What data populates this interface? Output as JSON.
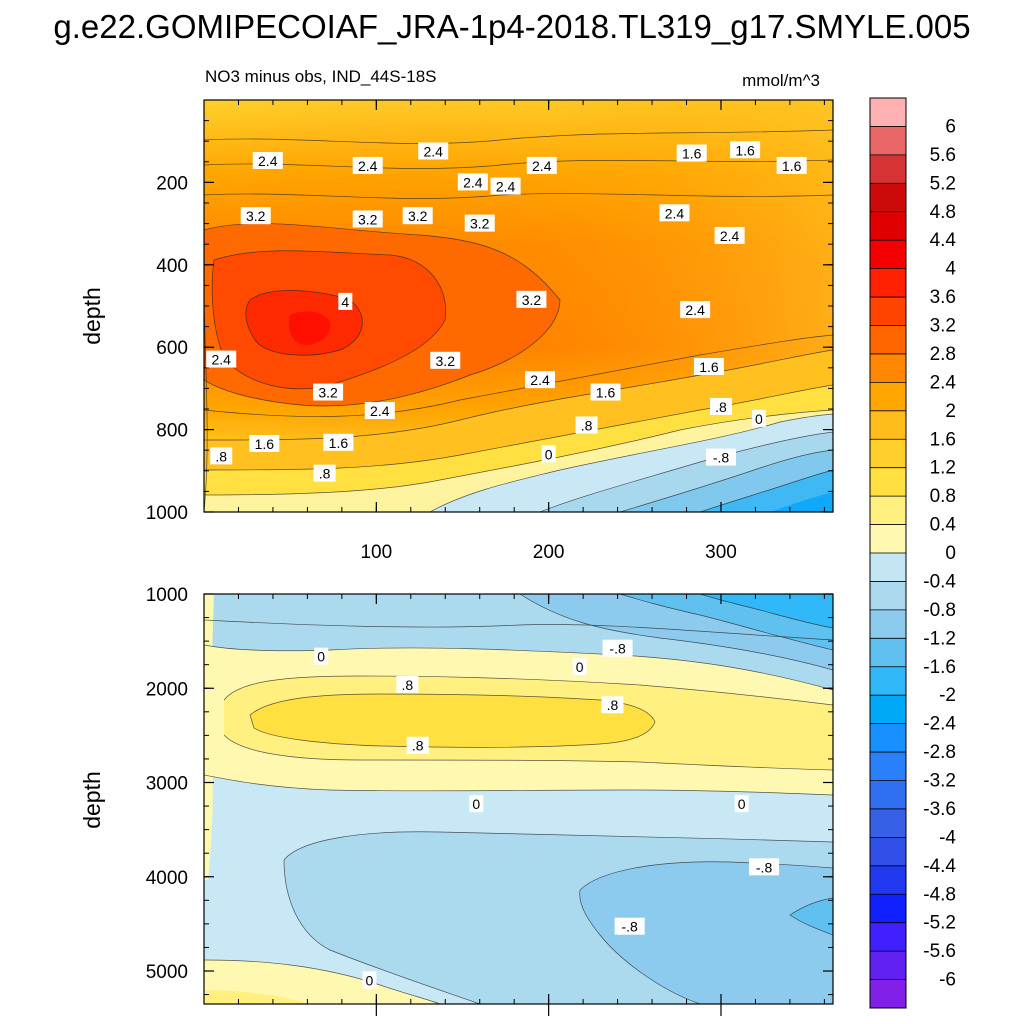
{
  "title": "g.e22.GOMIPECOIAF_JRA-1p4-2018.TL319_g17.SMYLE.005",
  "chart_data": {
    "type": "contour",
    "subtitle_left": "NO3 minus obs, IND_44S-18S",
    "subtitle_right": "mmol/m^3",
    "ylabel": "depth",
    "xlabel": "",
    "panels": [
      {
        "name": "upper",
        "xlim": [
          0,
          365
        ],
        "ylim": [
          0,
          1000
        ],
        "x_ticks": [
          "100",
          "200",
          "300"
        ],
        "x_tick_values": [
          100,
          200,
          300
        ],
        "y_ticks": [
          "200",
          "400",
          "600",
          "800",
          "1000"
        ],
        "y_tick_values": [
          200,
          400,
          600,
          800,
          1000
        ],
        "contour_labels": [
          {
            "text": "2.4",
            "x": 37,
            "y": 148
          },
          {
            "text": "2.4",
            "x": 95,
            "y": 160
          },
          {
            "text": "2.4",
            "x": 133,
            "y": 125
          },
          {
            "text": "2.4",
            "x": 196,
            "y": 160
          },
          {
            "text": "2.4",
            "x": 156,
            "y": 200
          },
          {
            "text": "2.4",
            "x": 175,
            "y": 210
          },
          {
            "text": "1.6",
            "x": 283,
            "y": 130
          },
          {
            "text": "1.6",
            "x": 314,
            "y": 122
          },
          {
            "text": "1.6",
            "x": 341,
            "y": 160
          },
          {
            "text": "3.2",
            "x": 30,
            "y": 282
          },
          {
            "text": "3.2",
            "x": 95,
            "y": 290
          },
          {
            "text": "3.2",
            "x": 124,
            "y": 282
          },
          {
            "text": "3.2",
            "x": 160,
            "y": 300
          },
          {
            "text": "2.4",
            "x": 273,
            "y": 275
          },
          {
            "text": "2.4",
            "x": 305,
            "y": 330
          },
          {
            "text": "4",
            "x": 82,
            "y": 490
          },
          {
            "text": "3.2",
            "x": 190,
            "y": 485
          },
          {
            "text": "2.4",
            "x": 285,
            "y": 510
          },
          {
            "text": "2.4",
            "x": 10,
            "y": 630
          },
          {
            "text": "3.2",
            "x": 140,
            "y": 633
          },
          {
            "text": "3.2",
            "x": 72,
            "y": 710
          },
          {
            "text": "2.4",
            "x": 195,
            "y": 680
          },
          {
            "text": "1.6",
            "x": 293,
            "y": 648
          },
          {
            "text": "1.6",
            "x": 233,
            "y": 710
          },
          {
            "text": "2.4",
            "x": 102,
            "y": 755
          },
          {
            "text": ".8",
            "x": 300,
            "y": 745
          },
          {
            "text": "0",
            "x": 322,
            "y": 774
          },
          {
            "text": ".8",
            "x": 222,
            "y": 790
          },
          {
            "text": "1.6",
            "x": 35,
            "y": 835
          },
          {
            "text": "1.6",
            "x": 78,
            "y": 832
          },
          {
            "text": ".8",
            "x": 10,
            "y": 865
          },
          {
            "text": "0",
            "x": 200,
            "y": 860
          },
          {
            "text": "-.8",
            "x": 300,
            "y": 868
          },
          {
            "text": ".8",
            "x": 70,
            "y": 907
          }
        ]
      },
      {
        "name": "lower",
        "xlim": [
          0,
          365
        ],
        "ylim": [
          1000,
          5350
        ],
        "y_ticks": [
          "1000",
          "2000",
          "3000",
          "4000",
          "5000"
        ],
        "y_tick_values": [
          1000,
          2000,
          3000,
          4000,
          5000
        ],
        "contour_labels": [
          {
            "text": "0",
            "x": 68,
            "y": 1665
          },
          {
            "text": "-.8",
            "x": 240,
            "y": 1580
          },
          {
            "text": "0",
            "x": 218,
            "y": 1775
          },
          {
            "text": ".8",
            "x": 118,
            "y": 1965
          },
          {
            "text": ".8",
            "x": 237,
            "y": 2180
          },
          {
            "text": ".8",
            "x": 124,
            "y": 2610
          },
          {
            "text": "0",
            "x": 158,
            "y": 3230
          },
          {
            "text": "0",
            "x": 312,
            "y": 3230
          },
          {
            "text": "-.8",
            "x": 325,
            "y": 3900
          },
          {
            "text": "-.8",
            "x": 247,
            "y": 4530
          },
          {
            "text": "0",
            "x": 96,
            "y": 5100
          }
        ]
      }
    ],
    "colorbar": {
      "labels": [
        "6",
        "5.6",
        "5.2",
        "4.8",
        "4.4",
        "4",
        "3.6",
        "3.2",
        "2.8",
        "2.4",
        "2",
        "1.6",
        "1.2",
        "0.8",
        "0.4",
        "0",
        "-0.4",
        "-0.8",
        "-1.2",
        "-1.6",
        "-2",
        "-2.4",
        "-2.8",
        "-3.2",
        "-3.6",
        "-4",
        "-4.4",
        "-4.8",
        "-5.2",
        "-5.6",
        "-6"
      ],
      "colors": [
        "#ffb0b0",
        "#ea6767",
        "#d63434",
        "#cc0a0a",
        "#e00000",
        "#f40000",
        "#ff2000",
        "#ff4400",
        "#ff6600",
        "#ff8800",
        "#ffa600",
        "#ffbc1a",
        "#ffd02c",
        "#ffe040",
        "#fff080",
        "#fff8b0",
        "#c4e6f4",
        "#abd9ee",
        "#8dcbee",
        "#60c0f0",
        "#30b8f8",
        "#00a8f8",
        "#1890ff",
        "#2a80f8",
        "#3070f0",
        "#3860e6",
        "#3050e8",
        "#2038f0",
        "#1020ff",
        "#4020ff",
        "#6020f0",
        "#8020e8"
      ]
    }
  }
}
